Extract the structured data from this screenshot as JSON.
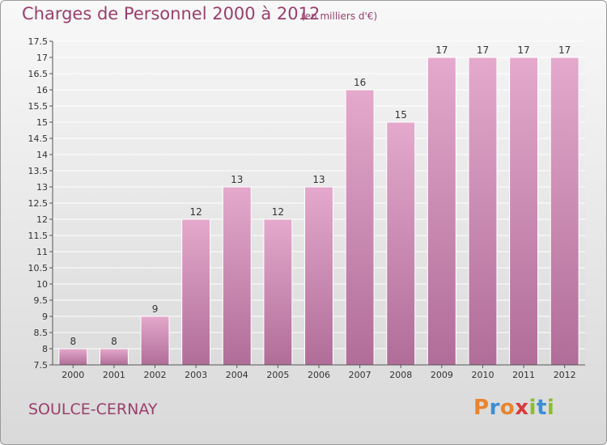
{
  "header": {
    "title": "Charges de Personnel 2000 à 2012",
    "subtitle": "(en milliers d'€)"
  },
  "footer": {
    "city": "SOULCE-CERNAY",
    "logo_text": "Proxiti"
  },
  "colors": {
    "bar_top": "#e4a9cc",
    "bar_bottom": "#b06d98",
    "title": "#9a3f6d",
    "grid": "#ffffff"
  },
  "chart_data": {
    "type": "bar",
    "title": "Charges de Personnel 2000 à 2012",
    "subtitle": "(en milliers d'€)",
    "categories": [
      "2000",
      "2001",
      "2002",
      "2003",
      "2004",
      "2005",
      "2006",
      "2007",
      "2008",
      "2009",
      "2010",
      "2011",
      "2012"
    ],
    "values": [
      8,
      8,
      9,
      12,
      13,
      12,
      13,
      16,
      15,
      17,
      17,
      17,
      17
    ],
    "data_labels": [
      "8",
      "8",
      "9",
      "12",
      "13",
      "12",
      "13",
      "16",
      "15",
      "17",
      "17",
      "17",
      "17"
    ],
    "ylim": [
      7.5,
      17.5
    ],
    "yticks": [
      "7.5",
      "8",
      "8.5",
      "9",
      "9.5",
      "10",
      "10.5",
      "11",
      "11.5",
      "12",
      "12.5",
      "13",
      "13.5",
      "14",
      "14.5",
      "15",
      "15.5",
      "16",
      "16.5",
      "17",
      "17.5"
    ],
    "xlabel": "",
    "ylabel": "",
    "grid": true
  }
}
